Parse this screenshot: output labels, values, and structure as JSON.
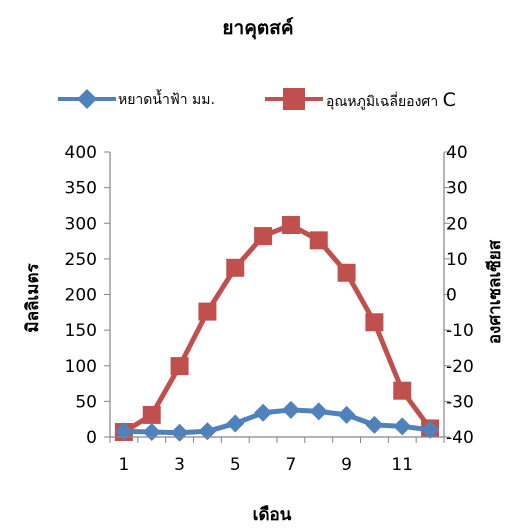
{
  "chart_data": {
    "type": "line",
    "title": "ยาคุตสค์",
    "xlabel": "เดือน",
    "ylabel": "มิลลิเมตร",
    "y2label": "องศาเซลเซียส",
    "x": [
      1,
      2,
      3,
      4,
      5,
      6,
      7,
      8,
      9,
      10,
      11,
      12
    ],
    "x_tick_labels": [
      "1",
      "3",
      "5",
      "7",
      "9",
      "11"
    ],
    "ylim": [
      0,
      400
    ],
    "y_ticks": [
      "0",
      "50",
      "100",
      "150",
      "200",
      "250",
      "300",
      "350",
      "400"
    ],
    "y2lim": [
      -40,
      40
    ],
    "y2_ticks": [
      "-40",
      "-30",
      "-20",
      "-10",
      "0",
      "10",
      "20",
      "30",
      "40"
    ],
    "grid": false,
    "legend_position": "top",
    "series": [
      {
        "name": "หยาดน้ำฟ้า มม.",
        "axis": "left",
        "color": "#4F81BD",
        "marker": "diamond",
        "values": [
          8,
          7,
          6,
          8,
          19,
          34,
          38,
          36,
          31,
          17,
          15,
          10
        ]
      },
      {
        "name": "อุณหภูมิเฉลี่ยองศา C",
        "axis": "right",
        "color": "#C0504D",
        "marker": "square",
        "values": [
          -38.6,
          -33.8,
          -20.1,
          -4.8,
          7.5,
          16.4,
          19.5,
          15.2,
          6.1,
          -7.8,
          -27.0,
          -37.6
        ]
      }
    ]
  }
}
